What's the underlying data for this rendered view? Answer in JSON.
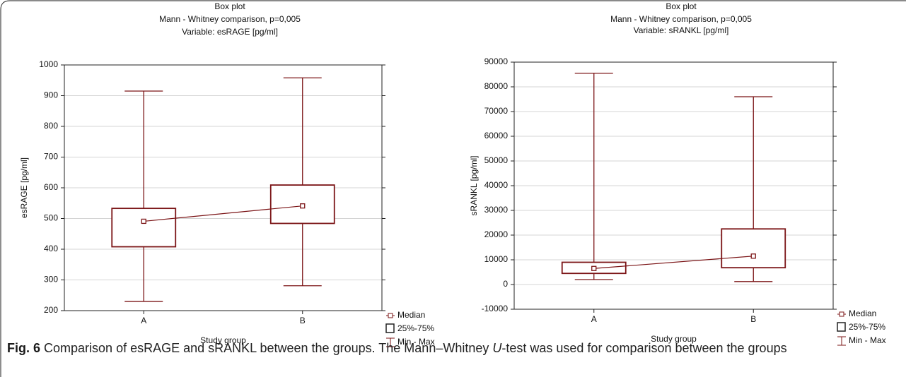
{
  "chart_data": [
    {
      "type": "box",
      "title": "Box plot",
      "subtitle": "Mann - Whitney comparison, p=0,005",
      "variable": "Variable:  esRAGE [pg/ml]",
      "x_label": "Study group",
      "y_label": "esRAGE [pg/ml]",
      "categories": [
        "A",
        "B"
      ],
      "median": [
        491,
        541
      ],
      "q1": [
        408,
        484
      ],
      "q3": [
        533,
        609
      ],
      "min": [
        230,
        281
      ],
      "max": [
        915,
        958
      ],
      "ylim": [
        200,
        1000
      ],
      "yticks": [
        200,
        300,
        400,
        500,
        600,
        700,
        800,
        900,
        1000
      ],
      "grid": true,
      "color": "#7b1416",
      "legend": [
        "Median",
        "25%-75%",
        "Min - Max"
      ]
    },
    {
      "type": "box",
      "title": "Box plot",
      "subtitle": "Mann - Whitney comparison, p=0,005",
      "variable": "Variable: sRANKL [pg/ml]",
      "x_label": "Study group",
      "y_label": "sRANKL [pg/ml]",
      "categories": [
        "A",
        "B"
      ],
      "median": [
        6500,
        11500
      ],
      "q1": [
        4500,
        6800
      ],
      "q3": [
        9000,
        22500
      ],
      "min": [
        2000,
        1200
      ],
      "max": [
        85500,
        76000
      ],
      "ylim": [
        -10000,
        90000
      ],
      "yticks": [
        -10000,
        0,
        10000,
        20000,
        30000,
        40000,
        50000,
        60000,
        70000,
        80000,
        90000
      ],
      "grid": true,
      "color": "#7b1416",
      "legend": [
        "Median",
        "25%-75%",
        "Min - Max"
      ]
    }
  ],
  "caption": {
    "label": "Fig. 6",
    "text": "Comparison of esRAGE and sRANKL between the groups. The Mann–Whitney ",
    "italic": "U",
    "text_end": "-test was used for comparison between the groups"
  }
}
